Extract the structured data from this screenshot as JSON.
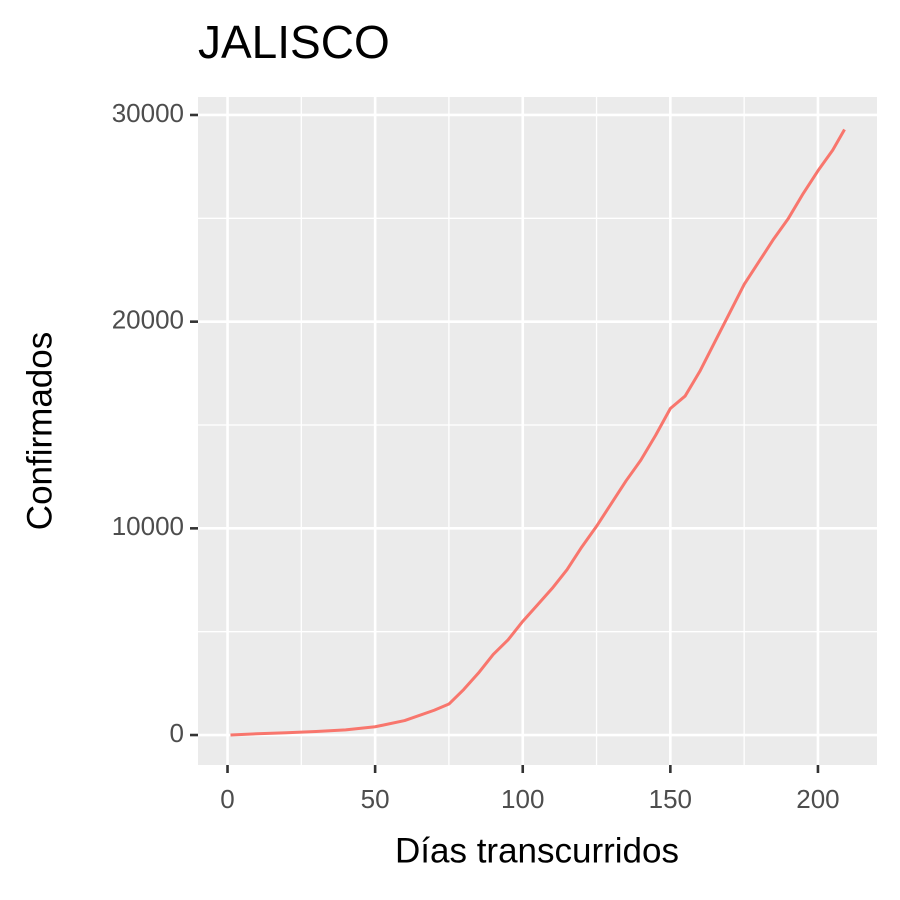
{
  "chart_data": {
    "type": "line",
    "title": "JALISCO",
    "xlabel": "Días transcurridos",
    "ylabel": "Confirmados",
    "x": [
      1,
      10,
      20,
      30,
      40,
      50,
      60,
      70,
      75,
      80,
      85,
      90,
      95,
      100,
      105,
      110,
      115,
      120,
      125,
      130,
      135,
      140,
      145,
      150,
      155,
      160,
      165,
      170,
      175,
      180,
      185,
      190,
      195,
      200,
      205,
      209
    ],
    "series": [
      {
        "name": "Confirmados",
        "color": "#f8766d",
        "values": [
          0,
          60,
          110,
          170,
          250,
          400,
          700,
          1200,
          1500,
          2200,
          3000,
          3900,
          4600,
          5500,
          6300,
          7100,
          8000,
          9100,
          10100,
          11200,
          12300,
          13300,
          14500,
          15800,
          16400,
          17600,
          19000,
          20400,
          21800,
          22900,
          24000,
          25000,
          26200,
          27300,
          28300,
          29300
        ]
      }
    ],
    "xlim": [
      -10,
      220
    ],
    "ylim": [
      -1450,
      30870
    ],
    "xticks": [
      0,
      50,
      100,
      150,
      200
    ],
    "yticks": [
      0,
      10000,
      20000,
      30000
    ],
    "xminorticks": [
      25,
      75,
      125,
      175
    ],
    "yminorticks": [
      5000,
      15000,
      25000
    ],
    "grid": true
  }
}
